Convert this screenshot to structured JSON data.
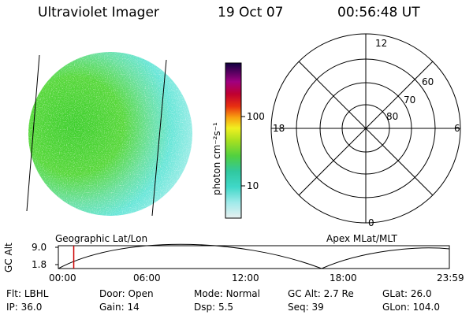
{
  "header": {
    "instrument": "Ultraviolet Imager",
    "date": "19 Oct 07",
    "time": "00:56:48 UT"
  },
  "colorbar": {
    "unit_label": "photon cm⁻²s⁻¹",
    "ticks": [
      "100",
      "10"
    ]
  },
  "polar_plot": {
    "mlt_labels": [
      "12",
      "18",
      "6",
      "0"
    ],
    "lat_labels": [
      "60",
      "70",
      "80"
    ]
  },
  "timeline": {
    "left_caption": "Geographic Lat/Lon",
    "right_caption": "Apex MLat/MLT",
    "y_axis_label": "GC Alt",
    "y_ticks": [
      "9.0",
      "1.8"
    ],
    "x_ticks": [
      "00:00",
      "06:00",
      "12:00",
      "18:00",
      "23:59"
    ],
    "marker_color": "#cc0000",
    "marker_time_fraction": 0.0394
  },
  "status": {
    "row1": [
      {
        "key": "Flt:",
        "value": "LBHL"
      },
      {
        "key": "Door:",
        "value": "Open"
      },
      {
        "key": "Mode:",
        "value": "Normal"
      },
      {
        "key": "GC Alt:",
        "value": "2.7 Re"
      },
      {
        "key": "GLat:",
        "value": "26.0"
      }
    ],
    "row2": [
      {
        "key": "IP:",
        "value": "36.0"
      },
      {
        "key": "Gain:",
        "value": "14"
      },
      {
        "key": "Dsp:",
        "value": "5.5"
      },
      {
        "key": "Seq:",
        "value": "39"
      },
      {
        "key": "GLon:",
        "value": "104.0"
      }
    ]
  },
  "colors": {
    "image_green": "#4fd23a",
    "image_cyan": "#5ee6d8",
    "image_pale": "#dde8e8"
  }
}
